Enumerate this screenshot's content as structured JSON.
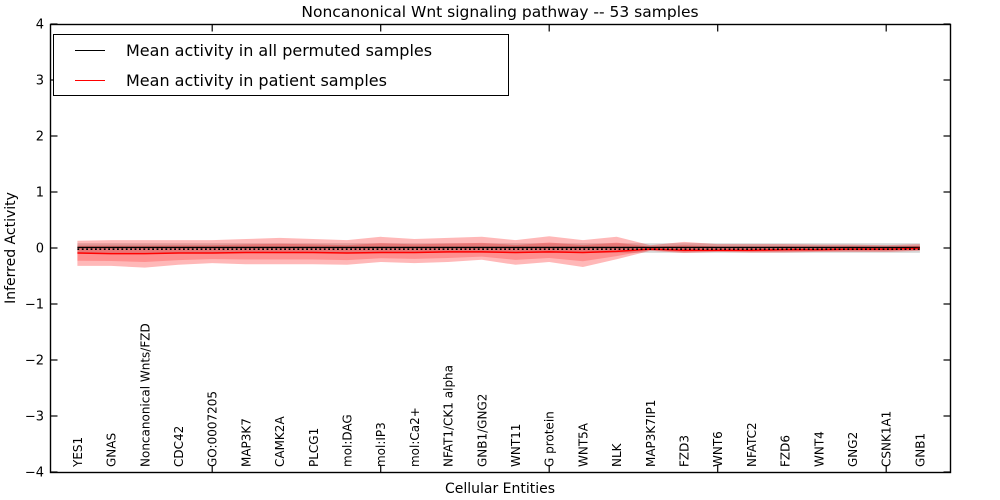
{
  "chart_data": {
    "type": "line",
    "title": "Noncanonical Wnt signaling pathway -- 53 samples",
    "xlabel": "Cellular Entities",
    "ylabel": "Inferred Activity",
    "ylim": [
      -4,
      4
    ],
    "ytick_values": [
      4,
      3,
      2,
      1,
      0,
      -1,
      -2,
      -3,
      -4
    ],
    "ytick_labels": [
      "4",
      "3",
      "2",
      "1",
      "0",
      "−1",
      "−2",
      "−3",
      "−4"
    ],
    "xtick_indices": [
      4,
      9,
      14,
      19,
      24
    ],
    "grid": false,
    "legend_position": "upper left",
    "entities": [
      "YES1",
      "GNAS",
      "Noncanonical Wnts/FZD",
      "CDC42",
      "GO:0007205",
      "MAP3K7",
      "CAMK2A",
      "PLCG1",
      "mol:DAG",
      "mol:IP3",
      "mol:Ca2+",
      "NFAT1/CK1 alpha",
      "GNB1/GNG2",
      "WNT11",
      "G protein",
      "WNT5A",
      "NLK",
      "MAP3K7IP1",
      "FZD3",
      "WNT6",
      "NFATC2",
      "FZD6",
      "WNT4",
      "GNG2",
      "CSNK1A1",
      "GNB1"
    ],
    "series": [
      {
        "name": "Mean activity in all permuted samples",
        "color": "#000000",
        "values": [
          0.01,
          0.01,
          0.01,
          0.01,
          0.01,
          0.01,
          0.01,
          0.01,
          0.01,
          0.01,
          0.01,
          0.01,
          0.01,
          0.01,
          0.01,
          0.01,
          0.01,
          0.01,
          0.01,
          0.01,
          0.01,
          0.01,
          0.01,
          0.01,
          0.01,
          0.01
        ]
      },
      {
        "name": "Mean activity in patient samples",
        "color": "#ff0000",
        "values": [
          -0.09,
          -0.1,
          -0.1,
          -0.09,
          -0.09,
          -0.08,
          -0.08,
          -0.08,
          -0.09,
          -0.08,
          -0.08,
          -0.07,
          -0.07,
          -0.08,
          -0.07,
          -0.08,
          -0.06,
          -0.02,
          -0.04,
          -0.04,
          -0.04,
          -0.03,
          -0.03,
          -0.02,
          -0.02,
          -0.01
        ]
      }
    ],
    "patient_band": {
      "top": [
        0.13,
        0.14,
        0.14,
        0.14,
        0.14,
        0.16,
        0.18,
        0.16,
        0.14,
        0.2,
        0.16,
        0.18,
        0.2,
        0.14,
        0.21,
        0.14,
        0.2,
        0.05,
        0.11,
        0.07,
        0.07,
        0.07,
        0.06,
        0.06,
        0.05,
        0.07
      ],
      "bottom": [
        -0.32,
        -0.32,
        -0.35,
        -0.3,
        -0.27,
        -0.29,
        -0.29,
        -0.29,
        -0.3,
        -0.25,
        -0.27,
        -0.25,
        -0.21,
        -0.3,
        -0.25,
        -0.34,
        -0.2,
        -0.05,
        -0.09,
        -0.07,
        -0.08,
        -0.08,
        -0.07,
        -0.07,
        -0.07,
        -0.05
      ]
    },
    "permuted_band": {
      "top": 0.085,
      "bottom": -0.085
    },
    "zero_reference": 0,
    "colors": {
      "patient_band_fill": "#ff0000",
      "permuted_band_fill": "#888888",
      "frame": "#000000"
    }
  }
}
